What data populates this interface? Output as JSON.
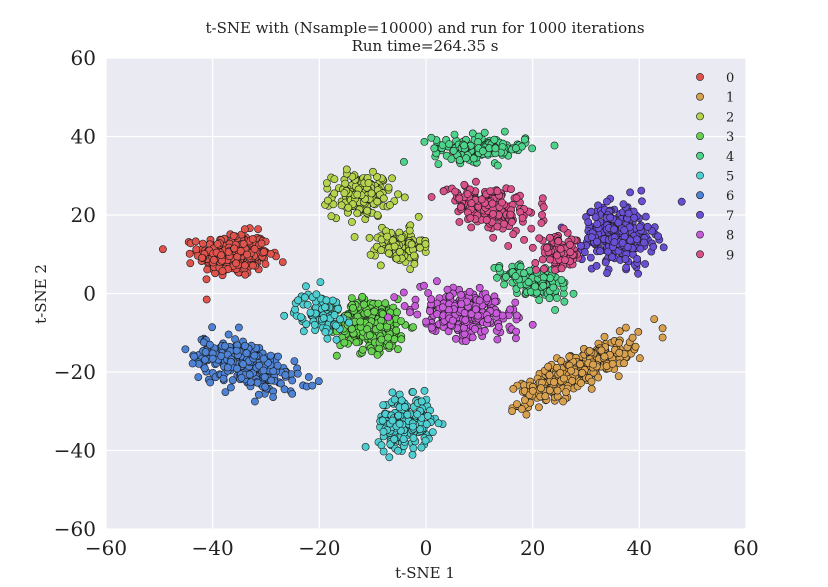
{
  "chart_data": {
    "type": "scatter",
    "title": "t-SNE with (Nsample=10000) and run for 1000 iterations",
    "subtitle": "Run time=264.35 s",
    "xlabel": "t-SNE 1",
    "ylabel": "t-SNE 2",
    "xlim": [
      -60,
      60
    ],
    "ylim": [
      -60,
      60
    ],
    "xticks": [
      -60,
      -40,
      -20,
      0,
      20,
      40,
      60
    ],
    "yticks": [
      -60,
      -40,
      -20,
      0,
      20,
      40,
      60
    ],
    "xtick_labels": [
      "−60",
      "−40",
      "−20",
      "0",
      "20",
      "40",
      "60"
    ],
    "ytick_labels": [
      "−60",
      "−40",
      "−20",
      "0",
      "20",
      "40",
      "60"
    ],
    "grid": true,
    "legend_position": "top-right",
    "style": {
      "plot_background": "#eaeaf2",
      "grid_color": "#ffffff",
      "marker_edge": "#1a1a1a"
    },
    "series": [
      {
        "name": "0",
        "color": "#e0534c",
        "count": 1000,
        "clusters": [
          {
            "cx": -36,
            "cy": 10,
            "sx": 6,
            "sy": 5,
            "rot": 0
          }
        ]
      },
      {
        "name": "1",
        "color": "#d9a14e",
        "count": 1000,
        "clusters": [
          {
            "cx": 28,
            "cy": -20,
            "sx": 12,
            "sy": 3.5,
            "rot": 35
          }
        ]
      },
      {
        "name": "2",
        "color": "#b5d44d",
        "count": 1000,
        "clusters": [
          {
            "cx": -12,
            "cy": 25,
            "sx": 5,
            "sy": 5,
            "rot": 0,
            "w": 0.6
          },
          {
            "cx": -5,
            "cy": 12,
            "sx": 4,
            "sy": 4,
            "rot": 0,
            "w": 0.4
          }
        ]
      },
      {
        "name": "3",
        "color": "#66d14f",
        "count": 1000,
        "clusters": [
          {
            "cx": -10,
            "cy": -8,
            "sx": 6,
            "sy": 6,
            "rot": 0
          }
        ]
      },
      {
        "name": "4",
        "color": "#4dd38a",
        "count": 1000,
        "clusters": [
          {
            "cx": 10,
            "cy": 37,
            "sx": 8,
            "sy": 3,
            "rot": 0,
            "w": 0.5
          },
          {
            "cx": 20,
            "cy": 3,
            "sx": 6,
            "sy": 3,
            "rot": -25,
            "w": 0.5
          }
        ]
      },
      {
        "name": "5",
        "color": "#4dcfd1",
        "count": 1000,
        "clusters": [
          {
            "cx": -4,
            "cy": -33,
            "sx": 4.5,
            "sy": 6,
            "rot": 0,
            "w": 0.7
          },
          {
            "cx": -20,
            "cy": -5,
            "sx": 4,
            "sy": 5,
            "rot": 0,
            "w": 0.3
          }
        ]
      },
      {
        "name": "6",
        "color": "#4d82d4",
        "count": 1000,
        "clusters": [
          {
            "cx": -34,
            "cy": -18,
            "sx": 9,
            "sy": 5,
            "rot": -30
          }
        ]
      },
      {
        "name": "7",
        "color": "#6a4fd4",
        "count": 1000,
        "clusters": [
          {
            "cx": 36,
            "cy": 15,
            "sx": 6,
            "sy": 7,
            "rot": 0
          }
        ]
      },
      {
        "name": "8",
        "color": "#c75ad8",
        "count": 1000,
        "clusters": [
          {
            "cx": 7,
            "cy": -5,
            "sx": 8,
            "sy": 5,
            "rot": -15
          }
        ]
      },
      {
        "name": "9",
        "color": "#d9508a",
        "count": 1000,
        "clusters": [
          {
            "cx": 12,
            "cy": 22,
            "sx": 8,
            "sy": 4,
            "rot": -25,
            "w": 0.7
          },
          {
            "cx": 25,
            "cy": 10,
            "sx": 4,
            "sy": 4,
            "rot": 0,
            "w": 0.3
          }
        ]
      }
    ]
  }
}
